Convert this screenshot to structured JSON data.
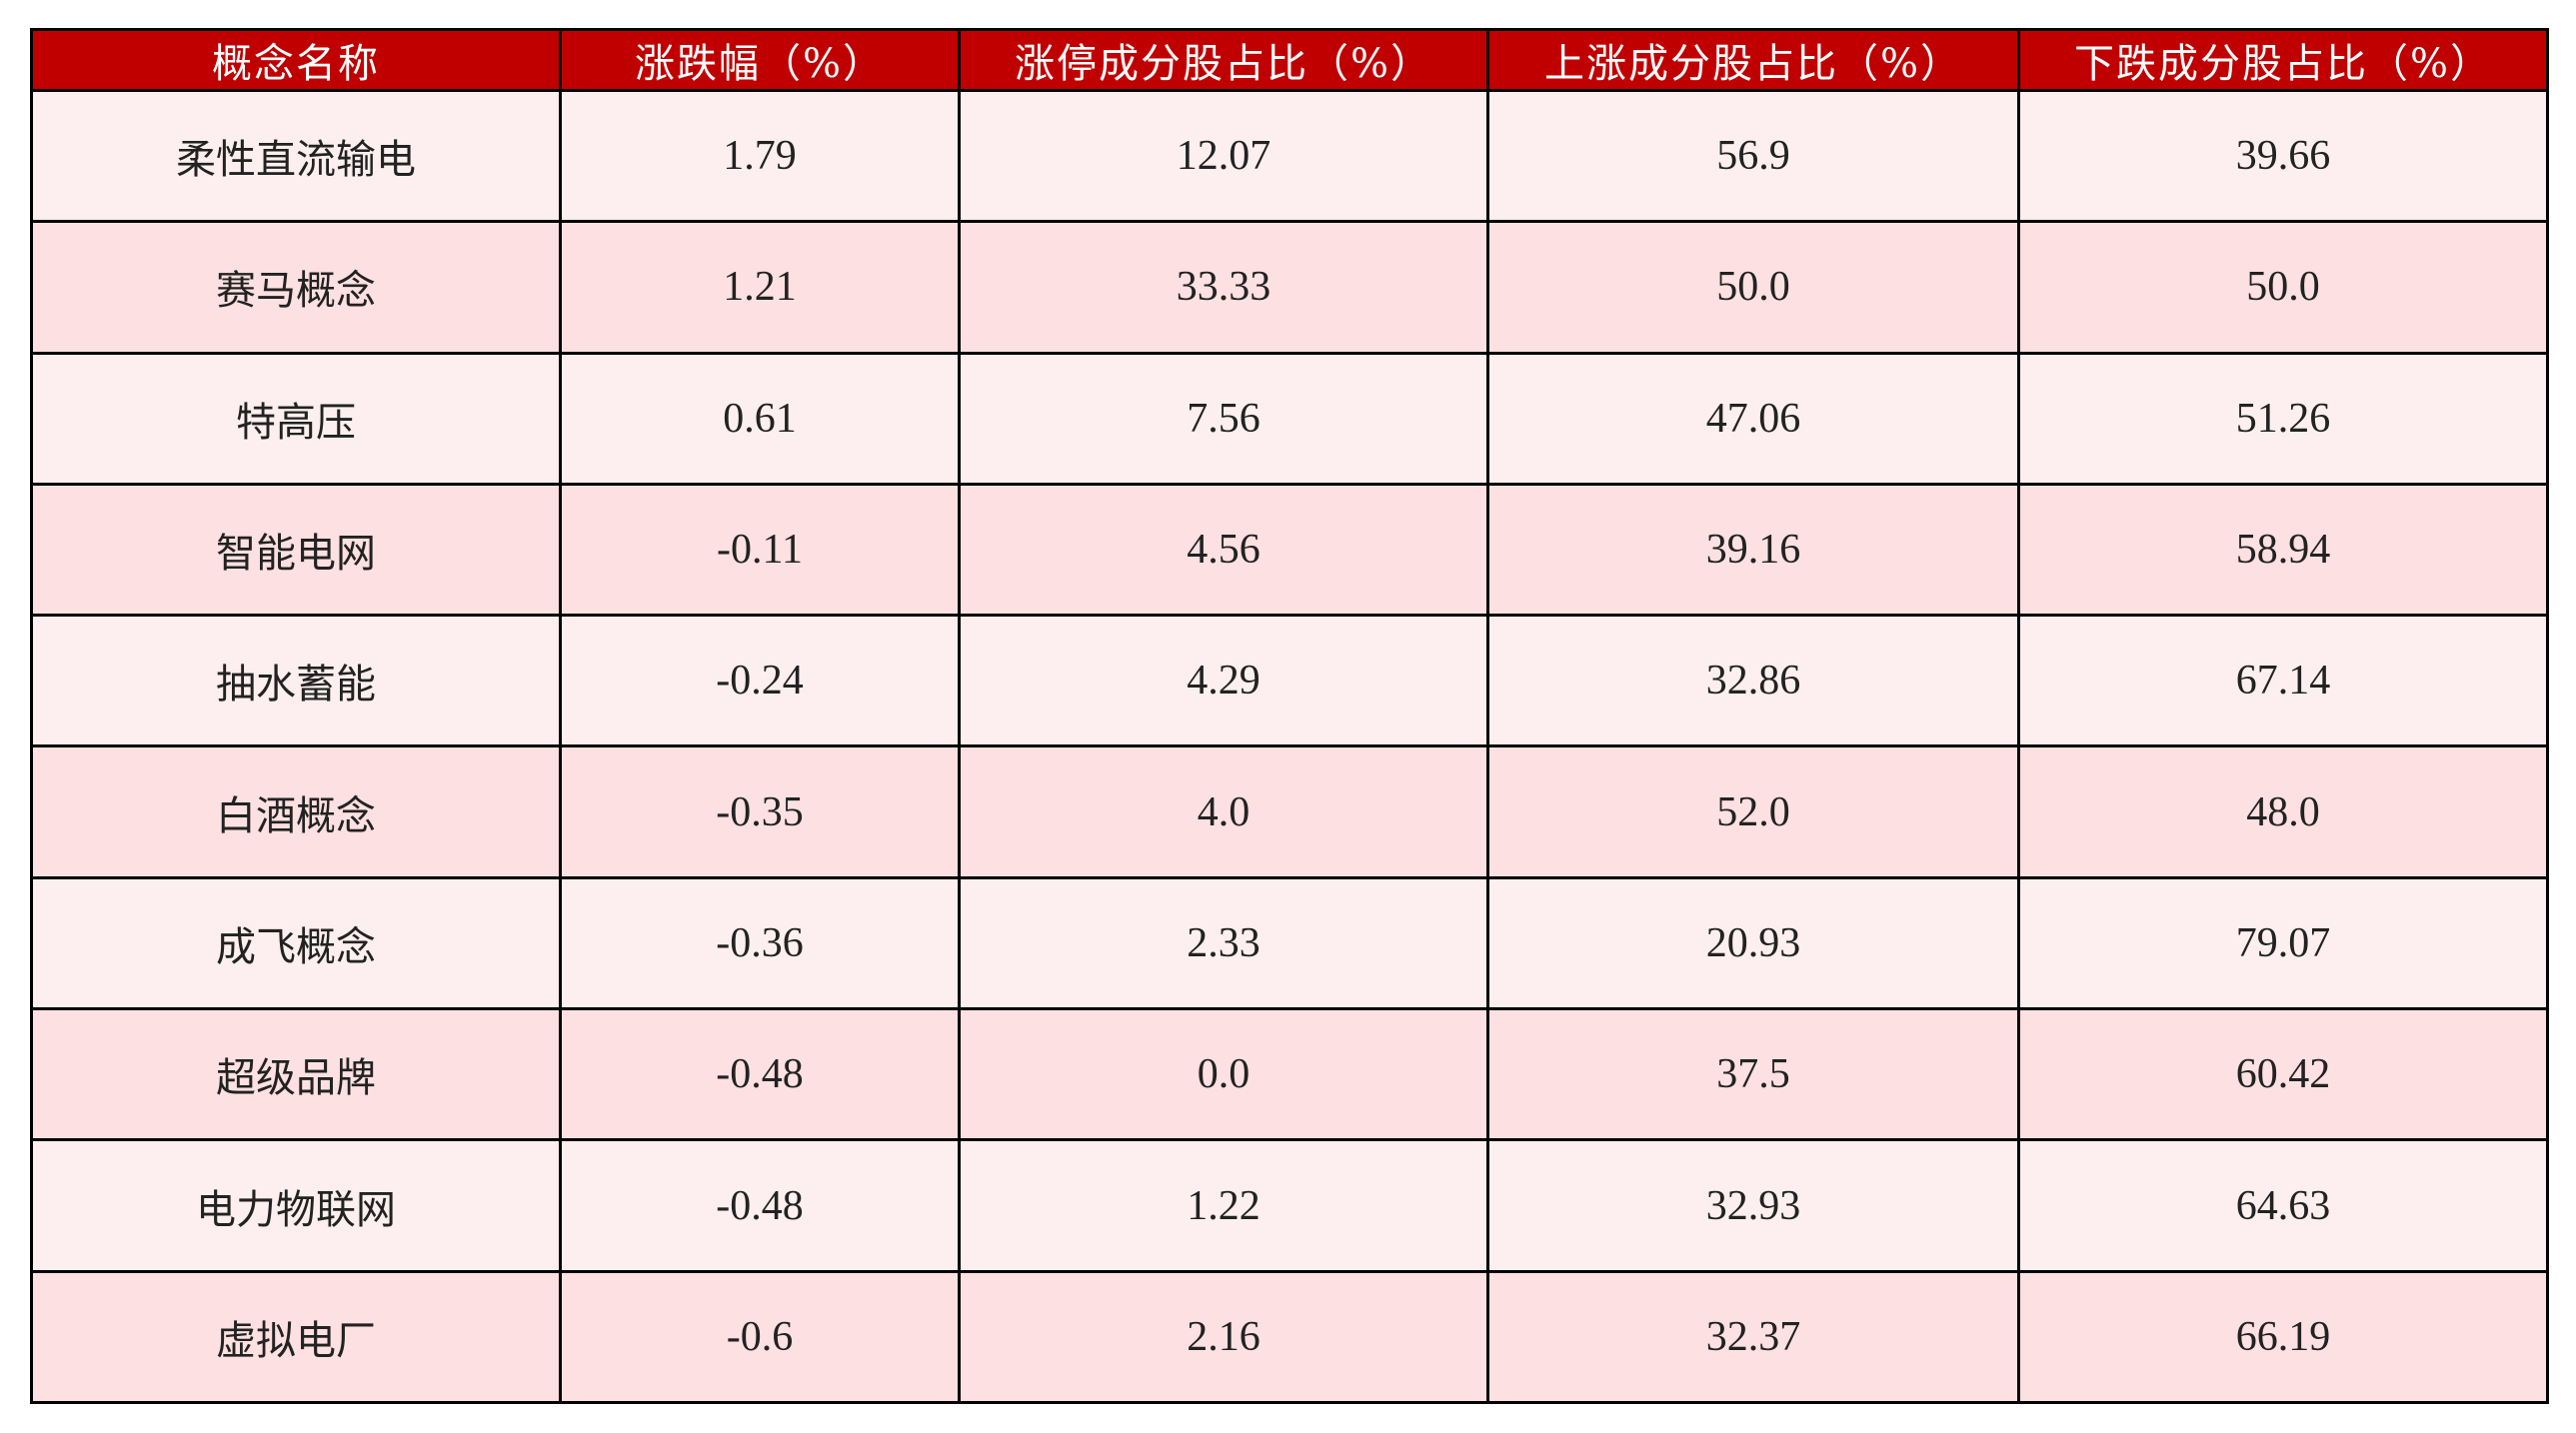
{
  "colors": {
    "header_bg": "#C00000",
    "row_odd": "#FDEFEF",
    "row_even": "#FDE0E1",
    "border": "#000000"
  },
  "table": {
    "headers": [
      "概念名称",
      "涨跌幅（%）",
      "涨停成分股占比（%）",
      "上涨成分股占比（%）",
      "下跌成分股占比（%）"
    ],
    "rows": [
      [
        "柔性直流输电",
        "1.79",
        "12.07",
        "56.9",
        "39.66"
      ],
      [
        "赛马概念",
        "1.21",
        "33.33",
        "50.0",
        "50.0"
      ],
      [
        "特高压",
        "0.61",
        "7.56",
        "47.06",
        "51.26"
      ],
      [
        "智能电网",
        "-0.11",
        "4.56",
        "39.16",
        "58.94"
      ],
      [
        "抽水蓄能",
        "-0.24",
        "4.29",
        "32.86",
        "67.14"
      ],
      [
        "白酒概念",
        "-0.35",
        "4.0",
        "52.0",
        "48.0"
      ],
      [
        "成飞概念",
        "-0.36",
        "2.33",
        "20.93",
        "79.07"
      ],
      [
        "超级品牌",
        "-0.48",
        "0.0",
        "37.5",
        "60.42"
      ],
      [
        "电力物联网",
        "-0.48",
        "1.22",
        "32.93",
        "64.63"
      ],
      [
        "虚拟电厂",
        "-0.6",
        "2.16",
        "32.37",
        "66.19"
      ]
    ]
  }
}
